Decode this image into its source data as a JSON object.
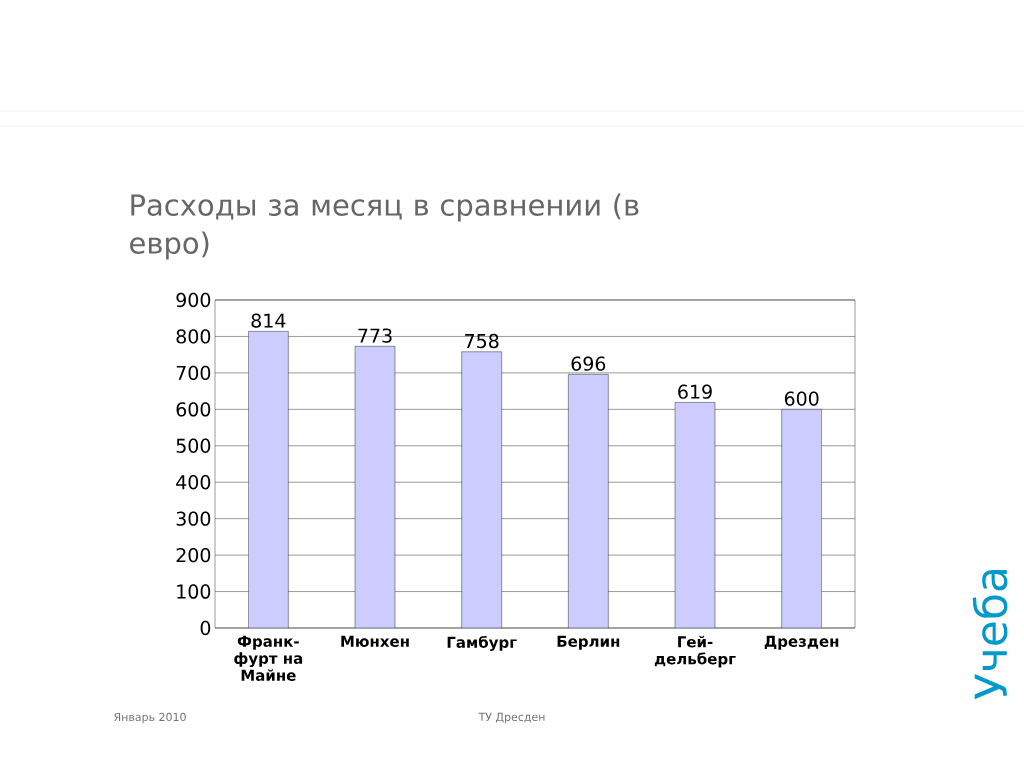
{
  "chart_data": {
    "type": "bar",
    "title": "Расходы за месяц в сравнении (в евро)",
    "categories": [
      "Франк-фурт на Майне",
      "Мюнхен",
      "Гамбург",
      "Берлин",
      "Гей-дельберг",
      "Дрезден"
    ],
    "values": [
      814,
      773,
      758,
      696,
      619,
      600
    ],
    "color": "#ccccff",
    "ylim": [
      0,
      900
    ],
    "yticks": [
      0,
      100,
      200,
      300,
      400,
      500,
      600,
      700,
      800,
      900
    ],
    "grid": "y",
    "data_labels": true,
    "annotations": [
      "Январь 2010",
      "ТУ Дресден",
      "Учеба"
    ]
  }
}
